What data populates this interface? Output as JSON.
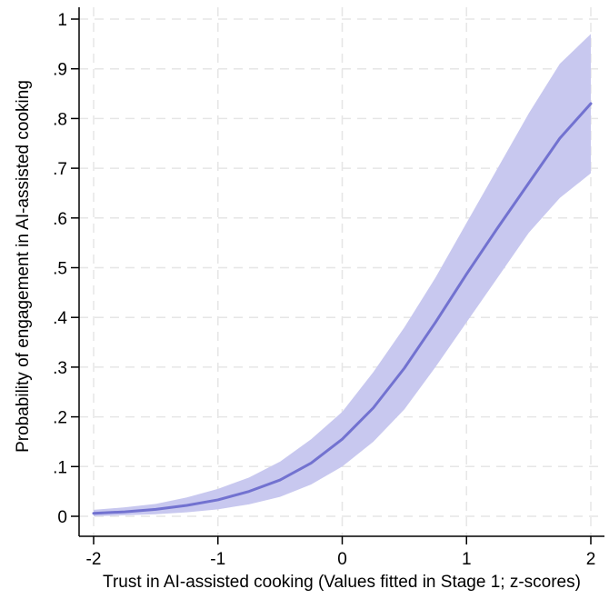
{
  "chart_data": {
    "type": "line",
    "title": "",
    "xlabel": "Trust in AI-assisted cooking (Values fitted in Stage 1; z-scores)",
    "ylabel": "Probability of engagement in AI-assisted cooking",
    "xlim": [
      -2,
      2
    ],
    "ylim": [
      0,
      1
    ],
    "x_ticks": [
      -2,
      -1,
      0,
      1,
      2
    ],
    "x_tick_labels": [
      "-2",
      "-1",
      "0",
      "1",
      "2"
    ],
    "y_ticks": [
      0,
      0.1,
      0.2,
      0.3,
      0.4,
      0.5,
      0.6,
      0.7,
      0.8,
      0.9,
      1
    ],
    "y_tick_labels": [
      "0",
      ".1",
      ".2",
      ".3",
      ".4",
      ".5",
      ".6",
      ".7",
      ".8",
      ".9",
      "1"
    ],
    "grid": true,
    "colors": {
      "line": "#7272d0",
      "band": "#c8c8ef"
    },
    "series": [
      {
        "x": [
          -2.0,
          -1.75,
          -1.5,
          -1.25,
          -1.0,
          -0.75,
          -0.5,
          -0.25,
          0.0,
          0.25,
          0.5,
          0.75,
          1.0,
          1.25,
          1.5,
          1.75,
          2.0
        ],
        "y": [
          0.006,
          0.009,
          0.014,
          0.022,
          0.033,
          0.05,
          0.073,
          0.107,
          0.155,
          0.218,
          0.298,
          0.39,
          0.487,
          0.58,
          0.67,
          0.76,
          0.83
        ],
        "lower": [
          0.0,
          0.002,
          0.004,
          0.008,
          0.014,
          0.024,
          0.039,
          0.064,
          0.1,
          0.15,
          0.215,
          0.3,
          0.39,
          0.48,
          0.57,
          0.64,
          0.69
        ],
        "upper": [
          0.013,
          0.018,
          0.025,
          0.038,
          0.055,
          0.078,
          0.11,
          0.155,
          0.21,
          0.29,
          0.38,
          0.48,
          0.59,
          0.7,
          0.81,
          0.91,
          0.97
        ]
      }
    ]
  }
}
